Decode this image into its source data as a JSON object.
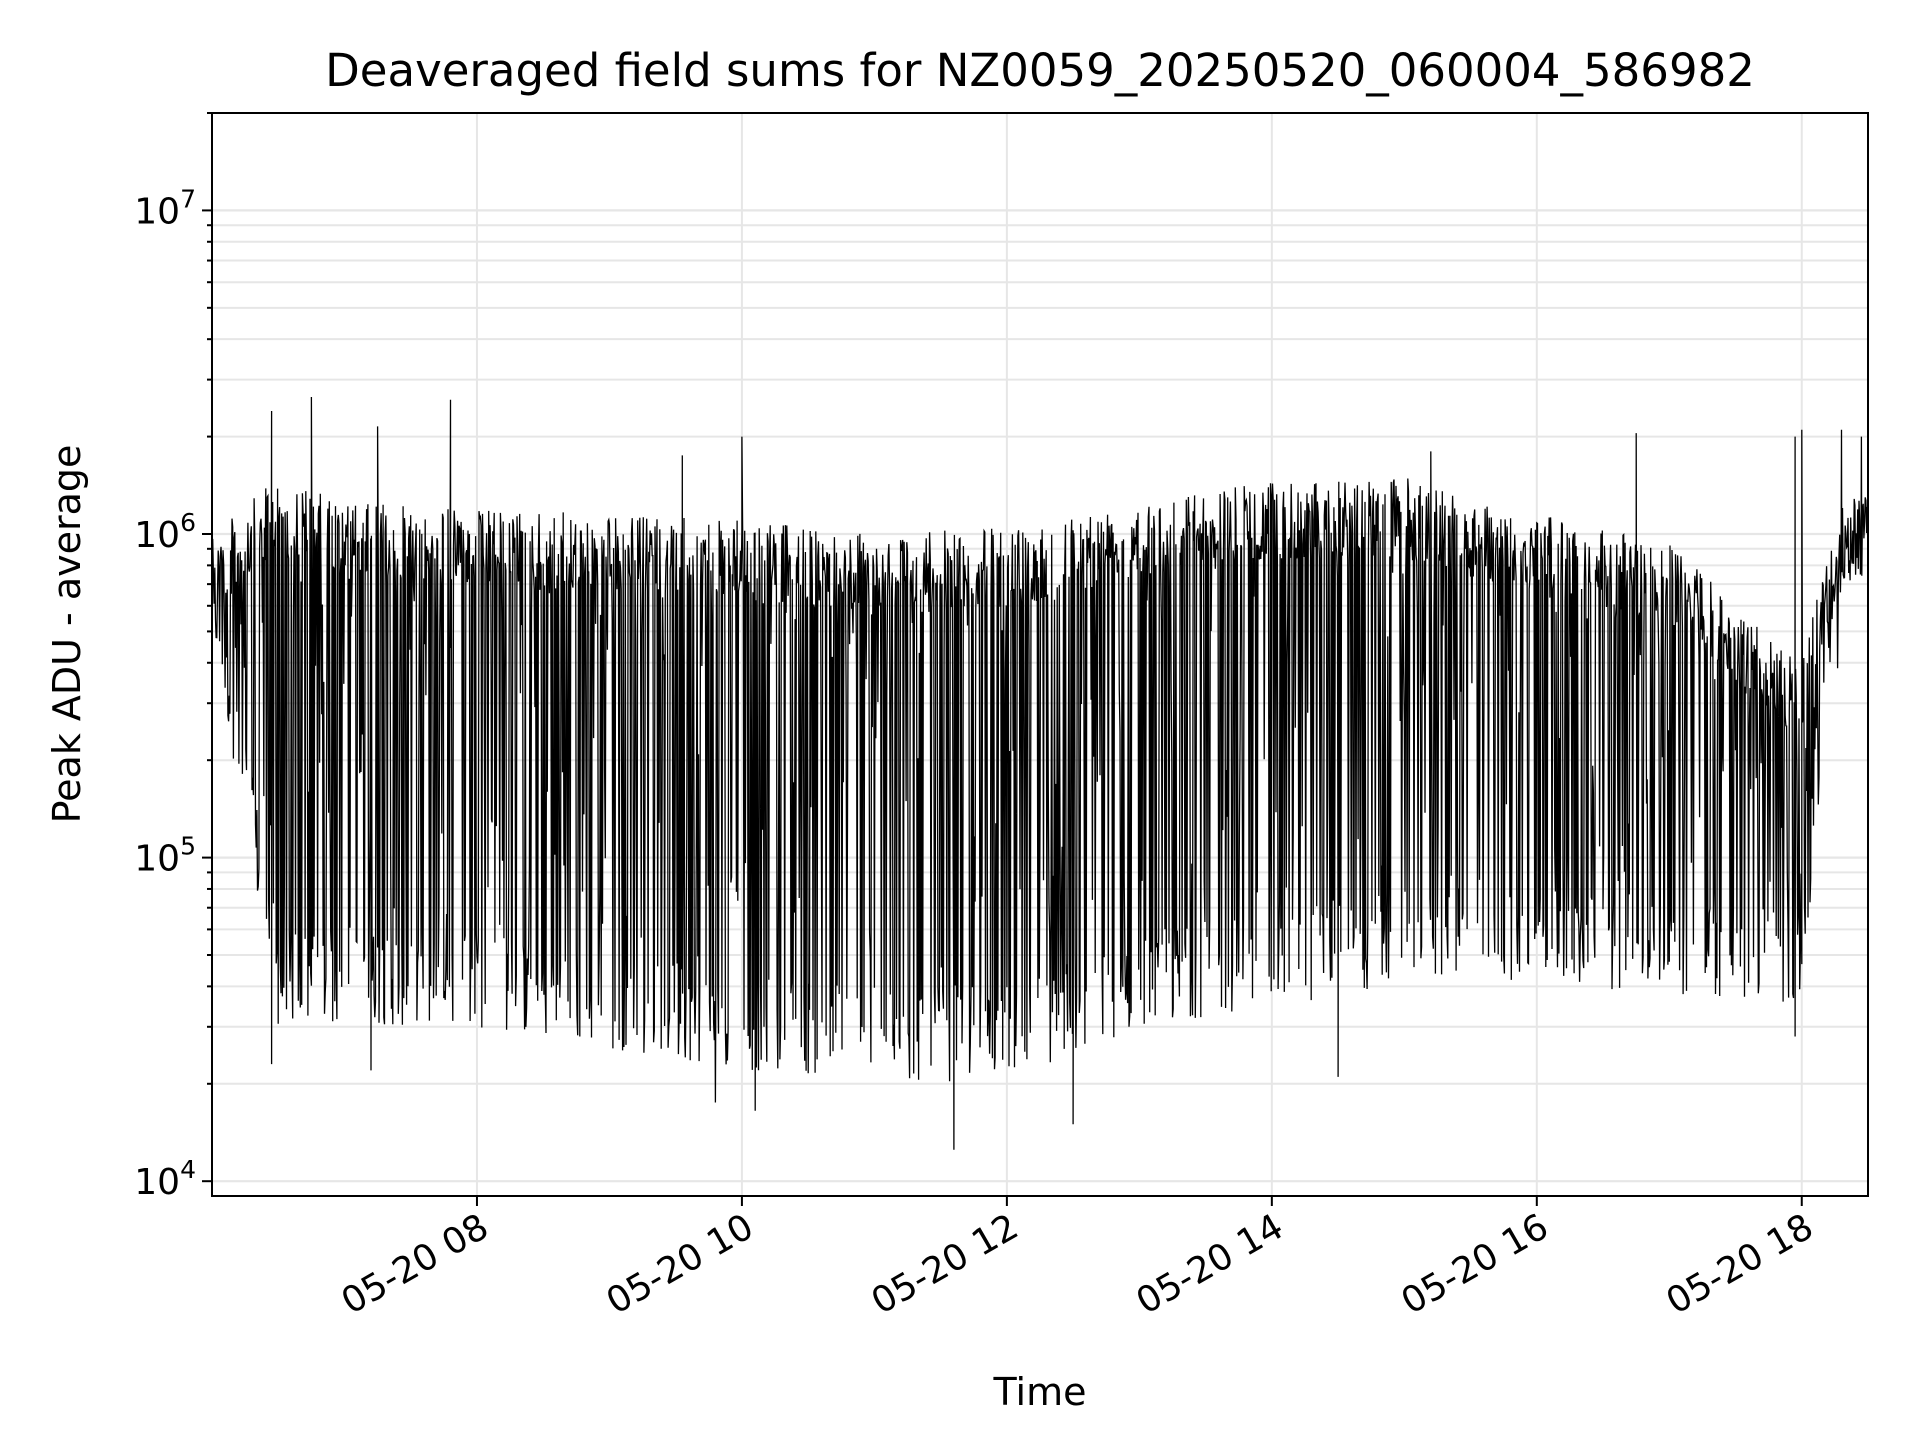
{
  "chart_data": {
    "type": "line",
    "title": "Deaveraged field sums for NZ0059_20250520_060004_586982",
    "xlabel": "Time",
    "ylabel": "Peak ADU - average",
    "y_scale": "log",
    "ylim": [
      9000,
      20000000
    ],
    "xlim": [
      "05-20 06:00",
      "05-20 18:30"
    ],
    "x_ticks": [
      "05-20 08",
      "05-20 10",
      "05-20 12",
      "05-20 14",
      "05-20 16",
      "05-20 18"
    ],
    "y_ticks": [
      {
        "base": "10",
        "exp": "4",
        "value": 10000
      },
      {
        "base": "10",
        "exp": "5",
        "value": 100000
      },
      {
        "base": "10",
        "exp": "6",
        "value": 1000000
      },
      {
        "base": "10",
        "exp": "7",
        "value": 10000000
      }
    ],
    "grid": true,
    "line_color": "#000000",
    "grid_color": "#e6e6e6",
    "series": [
      {
        "x_unit": "hour of 2025-05-20",
        "upper_envelope": [
          [
            6.0,
            1000000
          ],
          [
            6.5,
            1500000
          ],
          [
            7.0,
            1250000
          ],
          [
            8.0,
            1200000
          ],
          [
            9.0,
            1150000
          ],
          [
            10.0,
            1100000
          ],
          [
            11.0,
            1000000
          ],
          [
            12.0,
            1050000
          ],
          [
            13.0,
            1300000
          ],
          [
            14.0,
            1450000
          ],
          [
            15.0,
            1500000
          ],
          [
            15.5,
            1300000
          ],
          [
            16.0,
            1150000
          ],
          [
            17.0,
            950000
          ],
          [
            17.5,
            600000
          ],
          [
            18.0,
            400000
          ],
          [
            18.3,
            1300000
          ],
          [
            18.5,
            1300000
          ]
        ],
        "lower_envelope": [
          [
            6.0,
            500000
          ],
          [
            6.5,
            30000
          ],
          [
            8.0,
            30000
          ],
          [
            10.0,
            22000
          ],
          [
            11.5,
            20000
          ],
          [
            12.5,
            24000
          ],
          [
            13.0,
            30000
          ],
          [
            15.0,
            40000
          ],
          [
            15.5,
            45000
          ],
          [
            16.0,
            40000
          ],
          [
            17.0,
            38000
          ],
          [
            18.0,
            35000
          ],
          [
            18.2,
            300000
          ],
          [
            18.5,
            800000
          ]
        ],
        "peaks": [
          [
            6.45,
            2400000
          ],
          [
            6.75,
            2650000
          ],
          [
            7.25,
            2150000
          ],
          [
            7.8,
            2600000
          ],
          [
            9.55,
            1750000
          ],
          [
            10.0,
            2000000
          ],
          [
            15.2,
            1800000
          ],
          [
            16.75,
            2050000
          ],
          [
            17.95,
            2000000
          ],
          [
            18.0,
            2100000
          ],
          [
            18.3,
            2100000
          ],
          [
            18.45,
            2000000
          ]
        ],
        "troughs": [
          [
            6.45,
            23000
          ],
          [
            7.2,
            22000
          ],
          [
            9.8,
            17500
          ],
          [
            10.1,
            16500
          ],
          [
            11.6,
            12500
          ],
          [
            12.5,
            15000
          ],
          [
            14.5,
            21000
          ],
          [
            17.95,
            28000
          ]
        ]
      }
    ]
  }
}
